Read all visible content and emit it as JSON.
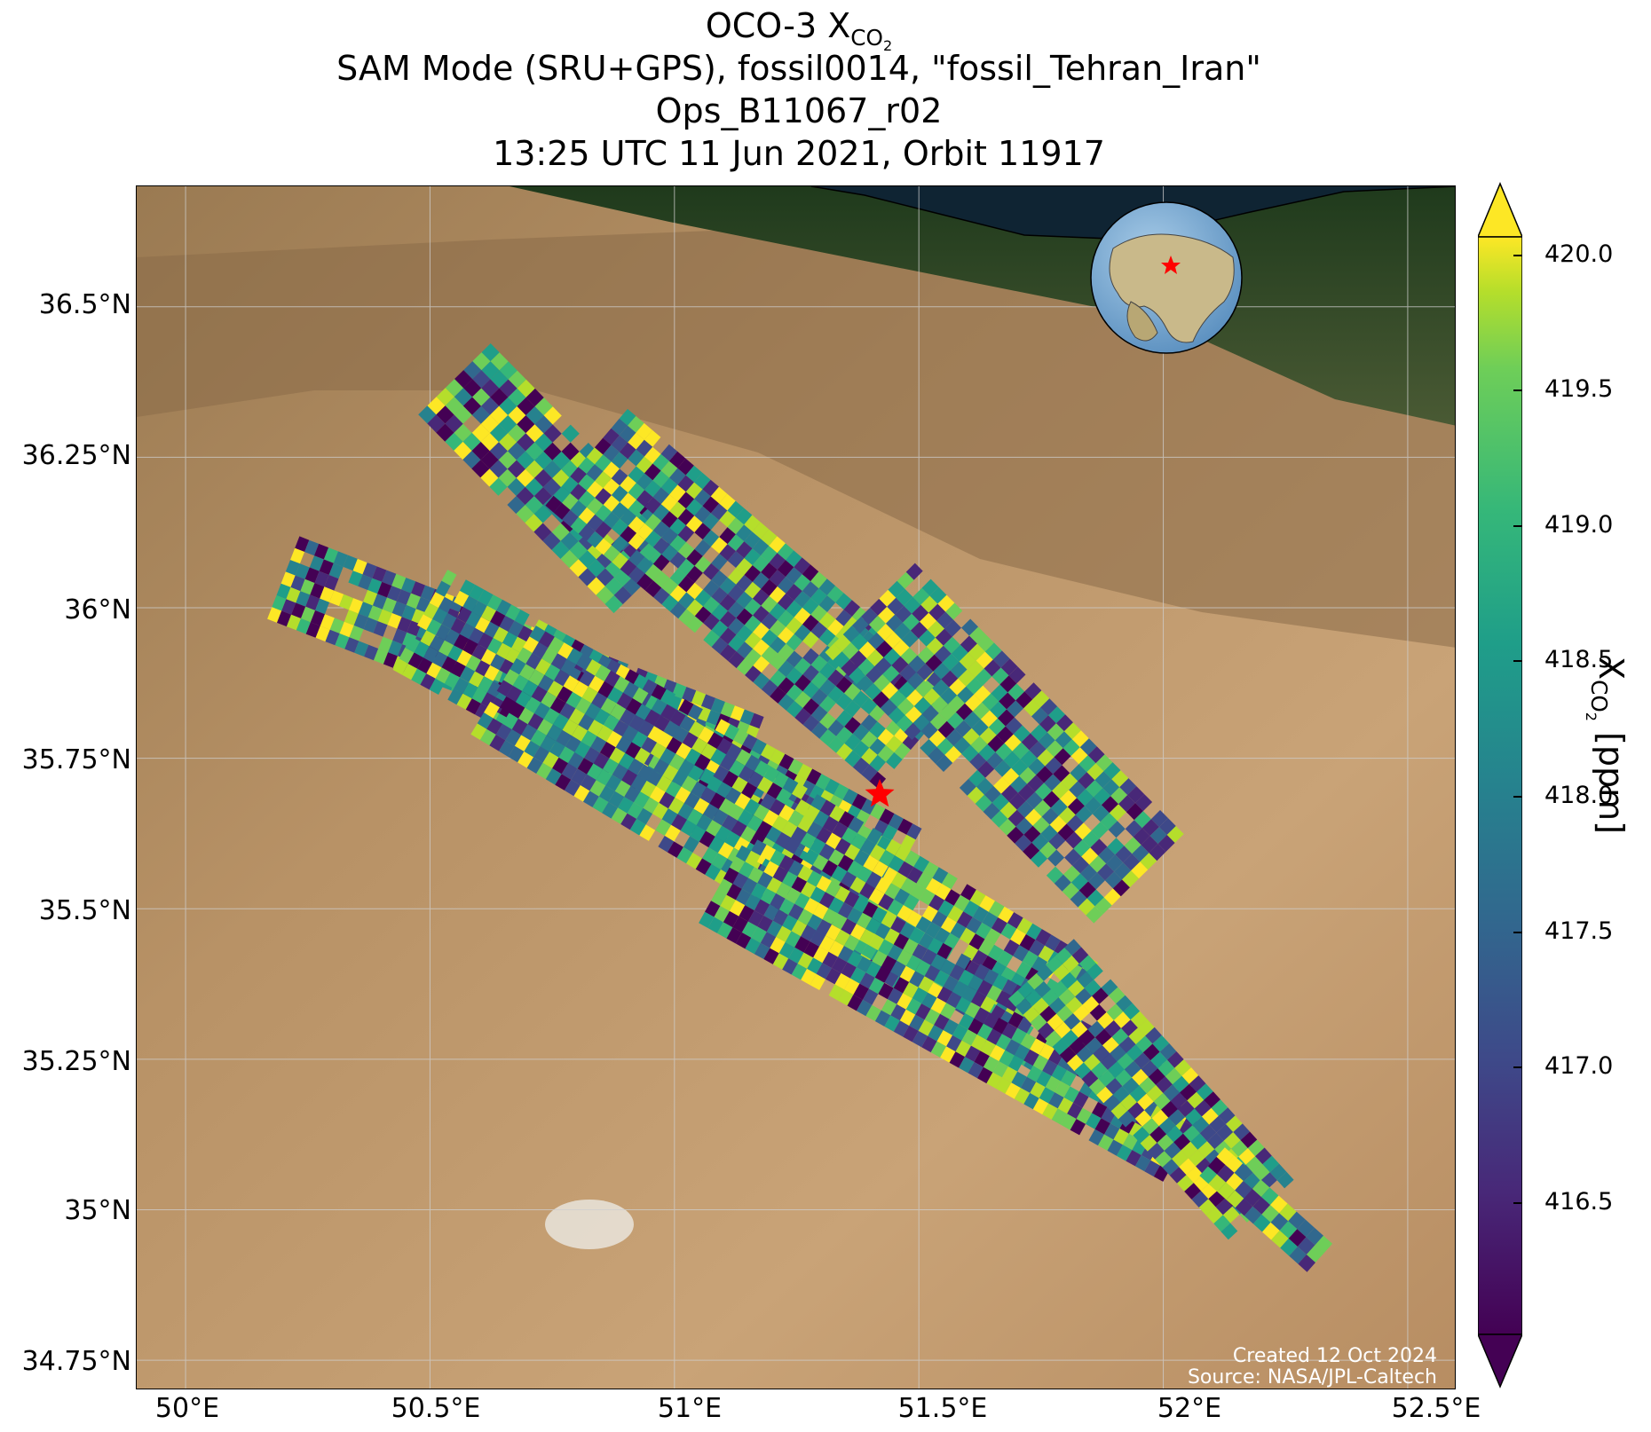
{
  "title": {
    "line1_prefix": "OCO-3 X",
    "line1_sub": "CO",
    "line1_subsub": "2",
    "line2": "SAM Mode (SRU+GPS), fossil0014, \"fossil_Tehran_Iran\"",
    "line3": "Ops_B11067_r02",
    "line4": "13:25 UTC 11 Jun 2021, Orbit 11917"
  },
  "map": {
    "lat_labels": [
      "36.5°N",
      "36.25°N",
      "36°N",
      "35.75°N",
      "35.5°N",
      "35.25°N",
      "35°N",
      "34.75°N"
    ],
    "lon_labels": [
      "50°E",
      "50.5°E",
      "51°E",
      "51.5°E",
      "52°E",
      "52.5°E"
    ],
    "target_marker_color": "#ff0000",
    "credit_line1": "Created 12 Oct 2024",
    "credit_line2": "Source: NASA/JPL-Caltech",
    "inset_globe": "globe-locator-icon"
  },
  "colorbar": {
    "ticks": [
      "420.0",
      "419.5",
      "419.0",
      "418.5",
      "418.0",
      "417.5",
      "417.0",
      "416.5"
    ],
    "label_prefix": "X",
    "label_sub": "CO",
    "label_subsub": "2",
    "label_suffix": " [ppm]",
    "colormap": "viridis",
    "extend": "both"
  },
  "chart_data": {
    "type": "heatmap",
    "title": "OCO-3 XCO2 — SAM Mode (SRU+GPS), fossil0014, \"fossil_Tehran_Iran\" — Ops_B11067_r02 — 13:25 UTC 11 Jun 2021, Orbit 11917",
    "xlabel": "",
    "ylabel": "",
    "xlim": [
      49.9,
      52.6
    ],
    "ylim": [
      34.7,
      36.7
    ],
    "color_range": [
      416.0,
      420.0
    ],
    "color_label": "XCO2 [ppm]",
    "target_location": {
      "lon": 51.42,
      "lat": 35.69
    },
    "grid": true
  }
}
